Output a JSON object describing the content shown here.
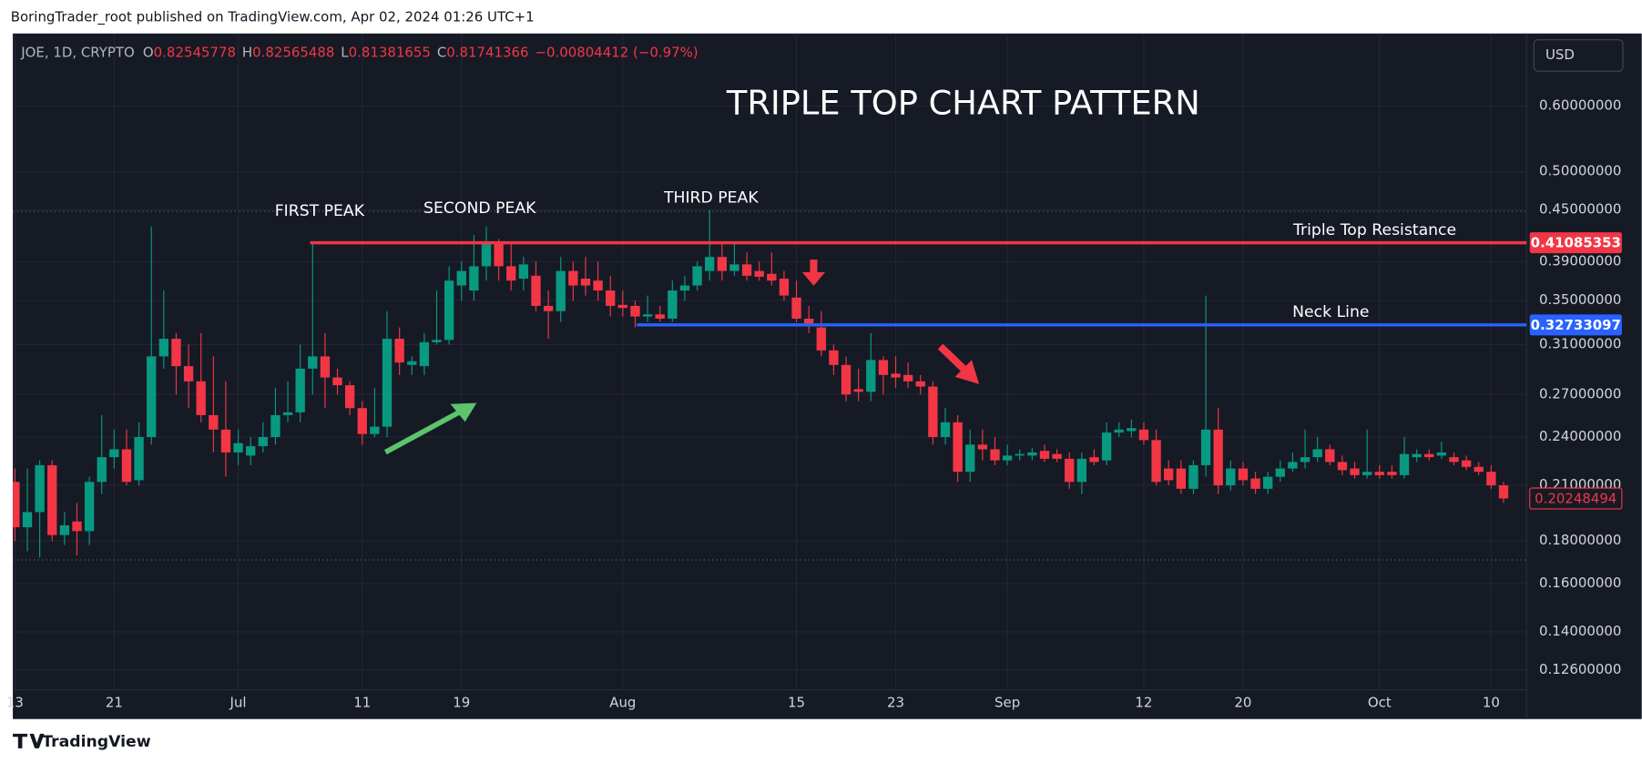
{
  "header": {
    "published": "BoringTrader_root published on TradingView.com, Apr 02, 2024 01:26 UTC+1",
    "brand": "TradingView"
  },
  "chart_data": {
    "type": "candlestick",
    "legend": {
      "symbol": "JOE, 1D, CRYPTO",
      "o_label": "O",
      "open": "0.82545778",
      "h_label": "H",
      "high": "0.82565488",
      "l_label": "L",
      "low": "0.81381655",
      "c_label": "C",
      "close": "0.81741366",
      "change": "−0.00804412 (−0.97%)"
    },
    "currency": "USD",
    "title": "TRIPLE TOP CHART PATTERN",
    "annotations": {
      "first_peak": "FIRST PEAK",
      "second_peak": "SECOND PEAK",
      "third_peak": "THIRD PEAK"
    },
    "up_color": "#089981",
    "down_color": "#f23645",
    "log_scale": true,
    "grid": true,
    "ylim": [
      0.11,
      0.733
    ],
    "yticks": [
      {
        "value": 0.126,
        "label": "0.12600000"
      },
      {
        "value": 0.14,
        "label": "0.14000000"
      },
      {
        "value": 0.16,
        "label": "0.16000000"
      },
      {
        "value": 0.18,
        "label": "0.18000000"
      },
      {
        "value": 0.21,
        "label": "0.21000000"
      },
      {
        "value": 0.24,
        "label": "0.24000000"
      },
      {
        "value": 0.27,
        "label": "0.27000000"
      },
      {
        "value": 0.31,
        "label": "0.31000000"
      },
      {
        "value": 0.35,
        "label": "0.35000000"
      },
      {
        "value": 0.39,
        "label": "0.39000000"
      },
      {
        "value": 0.45,
        "label": "0.45000000"
      },
      {
        "value": 0.5,
        "label": "0.50000000"
      },
      {
        "value": 0.6,
        "label": "0.60000000"
      }
    ],
    "levels": [
      {
        "name": "Triple Top Resistance",
        "value": 0.41085353,
        "label": "0.41085353",
        "color": "#f23645"
      },
      {
        "name": "Neck Line",
        "value": 0.32733097,
        "label": "0.32733097",
        "color": "#2962ff"
      }
    ],
    "last_price": {
      "value": 0.20248494,
      "label": "0.20248494"
    },
    "categories": [
      "13",
      null,
      null,
      null,
      null,
      null,
      null,
      null,
      "21",
      null,
      null,
      null,
      null,
      null,
      null,
      null,
      null,
      null,
      "Jul",
      null,
      null,
      null,
      null,
      null,
      null,
      null,
      null,
      null,
      "11",
      null,
      null,
      null,
      null,
      null,
      null,
      null,
      "19",
      null,
      null,
      null,
      null,
      null,
      null,
      null,
      null,
      null,
      null,
      null,
      null,
      "Aug",
      null,
      null,
      null,
      null,
      null,
      null,
      null,
      null,
      null,
      null,
      null,
      null,
      null,
      "15",
      null,
      null,
      null,
      null,
      null,
      null,
      null,
      "23",
      null,
      null,
      null,
      null,
      null,
      null,
      null,
      null,
      "Sep",
      null,
      null,
      null,
      null,
      null,
      null,
      null,
      null,
      null,
      null,
      "12",
      null,
      null,
      null,
      null,
      null,
      null,
      null,
      "20",
      null,
      null,
      null,
      null,
      null,
      null,
      null,
      null,
      null,
      null,
      "Oct",
      null,
      null,
      null,
      null,
      null,
      null,
      null,
      null,
      "10",
      null
    ],
    "ohlc": [
      [
        0.212,
        0.22,
        0.18,
        0.187
      ],
      [
        0.187,
        0.22,
        0.175,
        0.195
      ],
      [
        0.195,
        0.225,
        0.172,
        0.222
      ],
      [
        0.222,
        0.225,
        0.18,
        0.183
      ],
      [
        0.183,
        0.195,
        0.178,
        0.188
      ],
      [
        0.19,
        0.2,
        0.173,
        0.185
      ],
      [
        0.185,
        0.215,
        0.178,
        0.212
      ],
      [
        0.212,
        0.255,
        0.205,
        0.227
      ],
      [
        0.227,
        0.245,
        0.22,
        0.232
      ],
      [
        0.232,
        0.245,
        0.21,
        0.212
      ],
      [
        0.213,
        0.25,
        0.21,
        0.24
      ],
      [
        0.24,
        0.43,
        0.235,
        0.3
      ],
      [
        0.3,
        0.36,
        0.29,
        0.315
      ],
      [
        0.315,
        0.32,
        0.27,
        0.292
      ],
      [
        0.292,
        0.31,
        0.26,
        0.28
      ],
      [
        0.28,
        0.32,
        0.25,
        0.255
      ],
      [
        0.255,
        0.3,
        0.23,
        0.245
      ],
      [
        0.245,
        0.28,
        0.215,
        0.23
      ],
      [
        0.23,
        0.245,
        0.222,
        0.236
      ],
      [
        0.228,
        0.24,
        0.222,
        0.234
      ],
      [
        0.234,
        0.25,
        0.23,
        0.24
      ],
      [
        0.24,
        0.275,
        0.235,
        0.255
      ],
      [
        0.255,
        0.28,
        0.25,
        0.257
      ],
      [
        0.257,
        0.31,
        0.25,
        0.29
      ],
      [
        0.29,
        0.41,
        0.27,
        0.3
      ],
      [
        0.3,
        0.32,
        0.26,
        0.283
      ],
      [
        0.283,
        0.29,
        0.27,
        0.277
      ],
      [
        0.277,
        0.28,
        0.255,
        0.26
      ],
      [
        0.26,
        0.265,
        0.235,
        0.242
      ],
      [
        0.242,
        0.275,
        0.24,
        0.247
      ],
      [
        0.247,
        0.34,
        0.24,
        0.315
      ],
      [
        0.315,
        0.325,
        0.285,
        0.295
      ],
      [
        0.293,
        0.3,
        0.285,
        0.296
      ],
      [
        0.292,
        0.32,
        0.285,
        0.312
      ],
      [
        0.312,
        0.36,
        0.31,
        0.314
      ],
      [
        0.314,
        0.385,
        0.31,
        0.37
      ],
      [
        0.365,
        0.39,
        0.35,
        0.38
      ],
      [
        0.36,
        0.42,
        0.35,
        0.385
      ],
      [
        0.385,
        0.43,
        0.37,
        0.41
      ],
      [
        0.41,
        0.415,
        0.37,
        0.385
      ],
      [
        0.385,
        0.41,
        0.36,
        0.37
      ],
      [
        0.372,
        0.395,
        0.36,
        0.387
      ],
      [
        0.375,
        0.39,
        0.34,
        0.345
      ],
      [
        0.345,
        0.36,
        0.315,
        0.34
      ],
      [
        0.34,
        0.395,
        0.33,
        0.38
      ],
      [
        0.38,
        0.39,
        0.35,
        0.365
      ],
      [
        0.372,
        0.395,
        0.355,
        0.365
      ],
      [
        0.37,
        0.39,
        0.35,
        0.36
      ],
      [
        0.36,
        0.375,
        0.335,
        0.345
      ],
      [
        0.346,
        0.36,
        0.335,
        0.343
      ],
      [
        0.345,
        0.35,
        0.325,
        0.335
      ],
      [
        0.335,
        0.355,
        0.33,
        0.337
      ],
      [
        0.337,
        0.345,
        0.33,
        0.333
      ],
      [
        0.333,
        0.37,
        0.33,
        0.36
      ],
      [
        0.36,
        0.375,
        0.35,
        0.365
      ],
      [
        0.365,
        0.39,
        0.36,
        0.385
      ],
      [
        0.38,
        0.45,
        0.37,
        0.395
      ],
      [
        0.395,
        0.41,
        0.37,
        0.38
      ],
      [
        0.38,
        0.41,
        0.375,
        0.387
      ],
      [
        0.387,
        0.4,
        0.37,
        0.375
      ],
      [
        0.38,
        0.39,
        0.37,
        0.374
      ],
      [
        0.377,
        0.4,
        0.365,
        0.37
      ],
      [
        0.372,
        0.38,
        0.35,
        0.355
      ],
      [
        0.353,
        0.37,
        0.33,
        0.333
      ],
      [
        0.333,
        0.345,
        0.32,
        0.327
      ],
      [
        0.325,
        0.34,
        0.3,
        0.305
      ],
      [
        0.305,
        0.31,
        0.285,
        0.293
      ],
      [
        0.293,
        0.3,
        0.265,
        0.27
      ],
      [
        0.274,
        0.29,
        0.265,
        0.272
      ],
      [
        0.272,
        0.32,
        0.265,
        0.297
      ],
      [
        0.297,
        0.3,
        0.27,
        0.285
      ],
      [
        0.286,
        0.3,
        0.275,
        0.283
      ],
      [
        0.285,
        0.295,
        0.275,
        0.28
      ],
      [
        0.28,
        0.285,
        0.27,
        0.276
      ],
      [
        0.276,
        0.28,
        0.235,
        0.24
      ],
      [
        0.24,
        0.26,
        0.235,
        0.25
      ],
      [
        0.25,
        0.255,
        0.212,
        0.218
      ],
      [
        0.218,
        0.245,
        0.212,
        0.235
      ],
      [
        0.235,
        0.245,
        0.225,
        0.232
      ],
      [
        0.232,
        0.24,
        0.222,
        0.225
      ],
      [
        0.225,
        0.235,
        0.222,
        0.228
      ],
      [
        0.228,
        0.232,
        0.225,
        0.229
      ],
      [
        0.228,
        0.233,
        0.225,
        0.23
      ],
      [
        0.231,
        0.235,
        0.224,
        0.226
      ],
      [
        0.229,
        0.232,
        0.224,
        0.226
      ],
      [
        0.226,
        0.23,
        0.208,
        0.212
      ],
      [
        0.212,
        0.23,
        0.205,
        0.226
      ],
      [
        0.227,
        0.232,
        0.222,
        0.224
      ],
      [
        0.225,
        0.25,
        0.222,
        0.243
      ],
      [
        0.243,
        0.25,
        0.24,
        0.245
      ],
      [
        0.244,
        0.252,
        0.24,
        0.246
      ],
      [
        0.245,
        0.25,
        0.235,
        0.238
      ],
      [
        0.238,
        0.245,
        0.21,
        0.212
      ],
      [
        0.22,
        0.225,
        0.21,
        0.213
      ],
      [
        0.22,
        0.225,
        0.205,
        0.208
      ],
      [
        0.208,
        0.225,
        0.205,
        0.222
      ],
      [
        0.222,
        0.355,
        0.215,
        0.245
      ],
      [
        0.245,
        0.26,
        0.205,
        0.21
      ],
      [
        0.21,
        0.225,
        0.207,
        0.22
      ],
      [
        0.22,
        0.224,
        0.21,
        0.213
      ],
      [
        0.214,
        0.218,
        0.205,
        0.208
      ],
      [
        0.208,
        0.218,
        0.205,
        0.215
      ],
      [
        0.215,
        0.225,
        0.212,
        0.22
      ],
      [
        0.22,
        0.23,
        0.218,
        0.224
      ],
      [
        0.224,
        0.245,
        0.22,
        0.227
      ],
      [
        0.227,
        0.24,
        0.224,
        0.232
      ],
      [
        0.232,
        0.235,
        0.222,
        0.224
      ],
      [
        0.224,
        0.228,
        0.216,
        0.219
      ],
      [
        0.22,
        0.224,
        0.214,
        0.216
      ],
      [
        0.216,
        0.245,
        0.214,
        0.218
      ],
      [
        0.218,
        0.222,
        0.214,
        0.216
      ],
      [
        0.218,
        0.222,
        0.214,
        0.216
      ],
      [
        0.216,
        0.24,
        0.214,
        0.229
      ],
      [
        0.227,
        0.232,
        0.224,
        0.229
      ],
      [
        0.229,
        0.232,
        0.225,
        0.227
      ],
      [
        0.228,
        0.237,
        0.226,
        0.23
      ],
      [
        0.227,
        0.23,
        0.222,
        0.224
      ],
      [
        0.225,
        0.228,
        0.219,
        0.221
      ],
      [
        0.221,
        0.224,
        0.216,
        0.218
      ],
      [
        0.218,
        0.222,
        0.208,
        0.21
      ],
      [
        0.21,
        0.212,
        0.2,
        0.2025
      ]
    ]
  }
}
